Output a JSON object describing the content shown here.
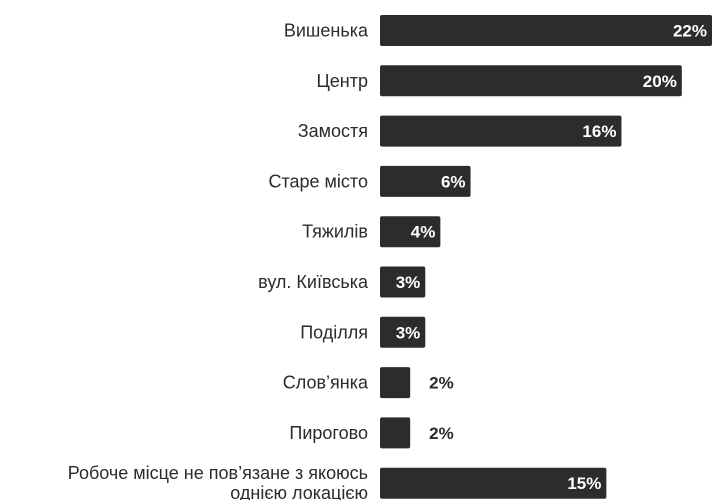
{
  "chart_data": {
    "type": "bar",
    "orientation": "horizontal",
    "categories": [
      [
        "Вишенька"
      ],
      [
        "Центр"
      ],
      [
        "Замостя"
      ],
      [
        "Старе місто"
      ],
      [
        "Тяжилів"
      ],
      [
        "вул. Київська"
      ],
      [
        "Поділля"
      ],
      [
        "Слов’янка"
      ],
      [
        "Пирогово"
      ],
      [
        "Робоче місце не пов’язане з якоюсь",
        "однією локацією"
      ]
    ],
    "values": [
      22,
      20,
      16,
      6,
      4,
      3,
      3,
      2,
      2,
      15
    ],
    "value_labels": [
      "22%",
      "20%",
      "16%",
      "6%",
      "4%",
      "3%",
      "3%",
      "2%",
      "2%",
      "15%"
    ],
    "unit": "%",
    "xlim": [
      0,
      22
    ],
    "grid": false,
    "legend": "none",
    "colors": {
      "bar": "#2e2b2b",
      "label_inside": "#ffffff",
      "label_outside": "#2b2b2b",
      "category_text": "#2b2b2b",
      "background": "#ffffff"
    }
  }
}
